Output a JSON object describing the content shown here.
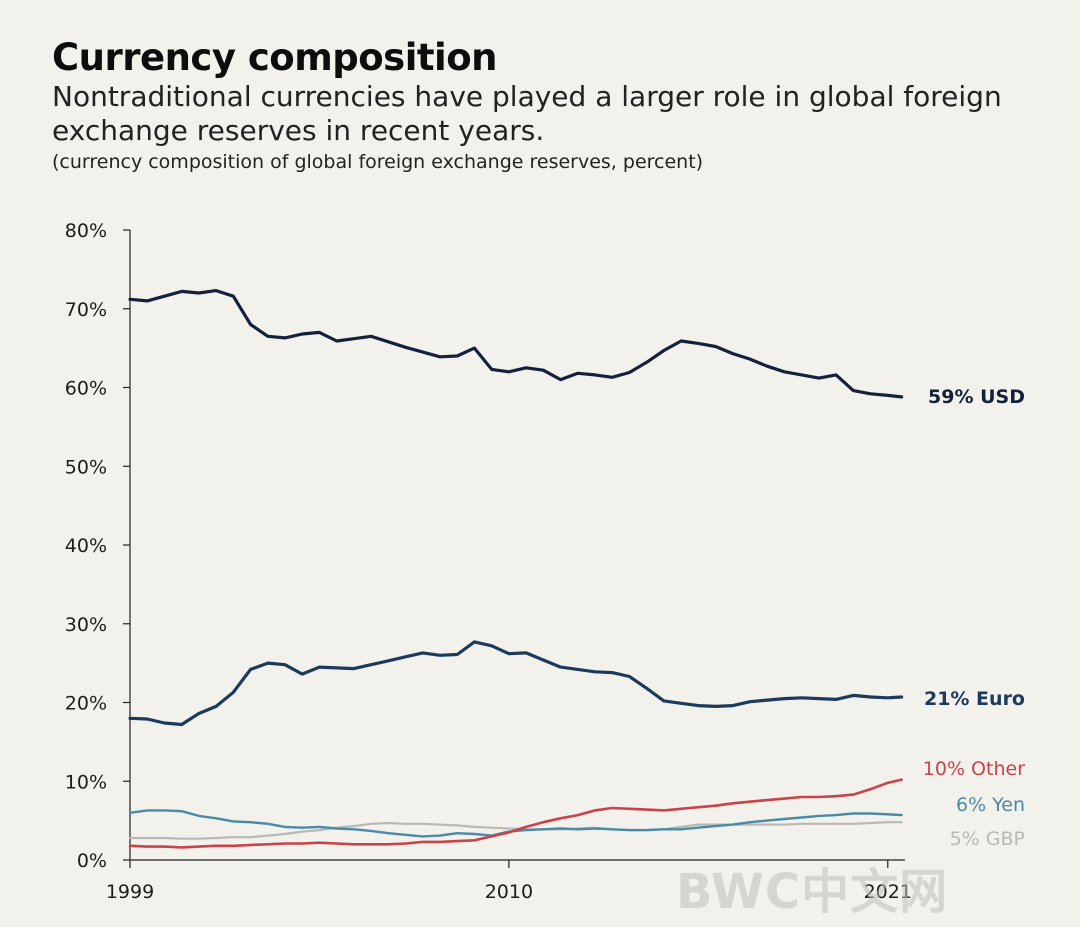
{
  "header": {
    "title": "Currency composition",
    "subtitle": "Nontraditional currencies have played a larger role in global foreign exchange reserves in recent years.",
    "note": "(currency composition of global foreign exchange reserves, percent)"
  },
  "watermark": "BWC中文网",
  "chart_data": {
    "type": "line",
    "title": "Currency composition",
    "xlabel": "",
    "ylabel": "",
    "xlim": [
      1999,
      2021.5
    ],
    "ylim": [
      0,
      80
    ],
    "y_ticks": [
      "0%",
      "10%",
      "20%",
      "30%",
      "40%",
      "50%",
      "60%",
      "70%",
      "80%"
    ],
    "x_ticks": [
      {
        "value": 1999,
        "label": "1999"
      },
      {
        "value": 2010,
        "label": "2010"
      },
      {
        "value": 2021,
        "label": "2021"
      }
    ],
    "grid": false,
    "legend": "direct labels at line ends",
    "x": [
      1999.0,
      1999.5,
      2000.0,
      2000.5,
      2001.0,
      2001.5,
      2002.0,
      2002.5,
      2003.0,
      2003.5,
      2004.0,
      2004.5,
      2005.0,
      2005.5,
      2006.0,
      2006.5,
      2007.0,
      2007.5,
      2008.0,
      2008.5,
      2009.0,
      2009.5,
      2010.0,
      2010.5,
      2011.0,
      2011.5,
      2012.0,
      2012.5,
      2013.0,
      2013.5,
      2014.0,
      2014.5,
      2015.0,
      2015.5,
      2016.0,
      2016.5,
      2017.0,
      2017.5,
      2018.0,
      2018.5,
      2019.0,
      2019.5,
      2020.0,
      2020.5,
      2021.0,
      2021.4
    ],
    "series": [
      {
        "name": "59% USD",
        "color": "#14213d",
        "width": 3.2,
        "values": [
          71.2,
          71.0,
          71.6,
          72.2,
          72.0,
          72.3,
          71.6,
          68.0,
          66.5,
          66.3,
          66.8,
          67.0,
          65.9,
          66.2,
          66.5,
          65.8,
          65.1,
          64.5,
          63.9,
          64.0,
          65.0,
          62.3,
          62.0,
          62.5,
          62.2,
          61.0,
          61.8,
          61.6,
          61.3,
          61.9,
          63.2,
          64.7,
          65.9,
          65.6,
          65.2,
          64.3,
          63.6,
          62.7,
          62.0,
          61.6,
          61.2,
          61.6,
          59.6,
          59.2,
          59.0,
          58.8
        ]
      },
      {
        "name": "21% Euro",
        "color": "#1c3a5c",
        "width": 3.2,
        "values": [
          18.0,
          17.9,
          17.4,
          17.2,
          18.6,
          19.5,
          21.3,
          24.2,
          25.0,
          24.8,
          23.6,
          24.5,
          24.4,
          24.3,
          24.8,
          25.3,
          25.8,
          26.3,
          26.0,
          26.1,
          27.7,
          27.2,
          26.2,
          26.3,
          25.4,
          24.5,
          24.2,
          23.9,
          23.8,
          23.3,
          21.8,
          20.2,
          19.9,
          19.6,
          19.5,
          19.6,
          20.1,
          20.3,
          20.5,
          20.6,
          20.5,
          20.4,
          20.9,
          20.7,
          20.6,
          20.7
        ]
      },
      {
        "name": "10% Other",
        "color": "#c9434a",
        "width": 2.6,
        "values": [
          1.8,
          1.7,
          1.7,
          1.6,
          1.7,
          1.8,
          1.8,
          1.9,
          2.0,
          2.1,
          2.1,
          2.2,
          2.1,
          2.0,
          2.0,
          2.0,
          2.1,
          2.3,
          2.3,
          2.4,
          2.5,
          3.0,
          3.5,
          4.2,
          4.8,
          5.3,
          5.7,
          6.3,
          6.6,
          6.5,
          6.4,
          6.3,
          6.5,
          6.7,
          6.9,
          7.2,
          7.4,
          7.6,
          7.8,
          8.0,
          8.0,
          8.1,
          8.3,
          9.0,
          9.8,
          10.2
        ]
      },
      {
        "name": "6% Yen",
        "color": "#4a8aa8",
        "width": 2.4,
        "values": [
          6.0,
          6.3,
          6.3,
          6.2,
          5.6,
          5.3,
          4.9,
          4.8,
          4.6,
          4.2,
          4.1,
          4.2,
          4.0,
          3.9,
          3.7,
          3.4,
          3.2,
          3.0,
          3.1,
          3.4,
          3.3,
          3.1,
          3.6,
          3.8,
          3.9,
          4.0,
          3.9,
          4.0,
          3.9,
          3.8,
          3.8,
          3.9,
          3.9,
          4.1,
          4.3,
          4.5,
          4.8,
          5.0,
          5.2,
          5.4,
          5.6,
          5.7,
          5.9,
          5.9,
          5.8,
          5.7
        ]
      },
      {
        "name": "5% GBP",
        "color": "#b9b8b3",
        "width": 2.2,
        "values": [
          2.8,
          2.8,
          2.8,
          2.7,
          2.7,
          2.8,
          2.9,
          2.9,
          3.1,
          3.3,
          3.6,
          3.8,
          4.1,
          4.3,
          4.6,
          4.7,
          4.6,
          4.6,
          4.5,
          4.4,
          4.2,
          4.1,
          4.0,
          3.9,
          3.9,
          3.9,
          4.0,
          4.1,
          3.9,
          3.8,
          3.8,
          3.9,
          4.2,
          4.5,
          4.5,
          4.5,
          4.5,
          4.5,
          4.5,
          4.6,
          4.6,
          4.6,
          4.6,
          4.7,
          4.8,
          4.8
        ]
      }
    ]
  }
}
